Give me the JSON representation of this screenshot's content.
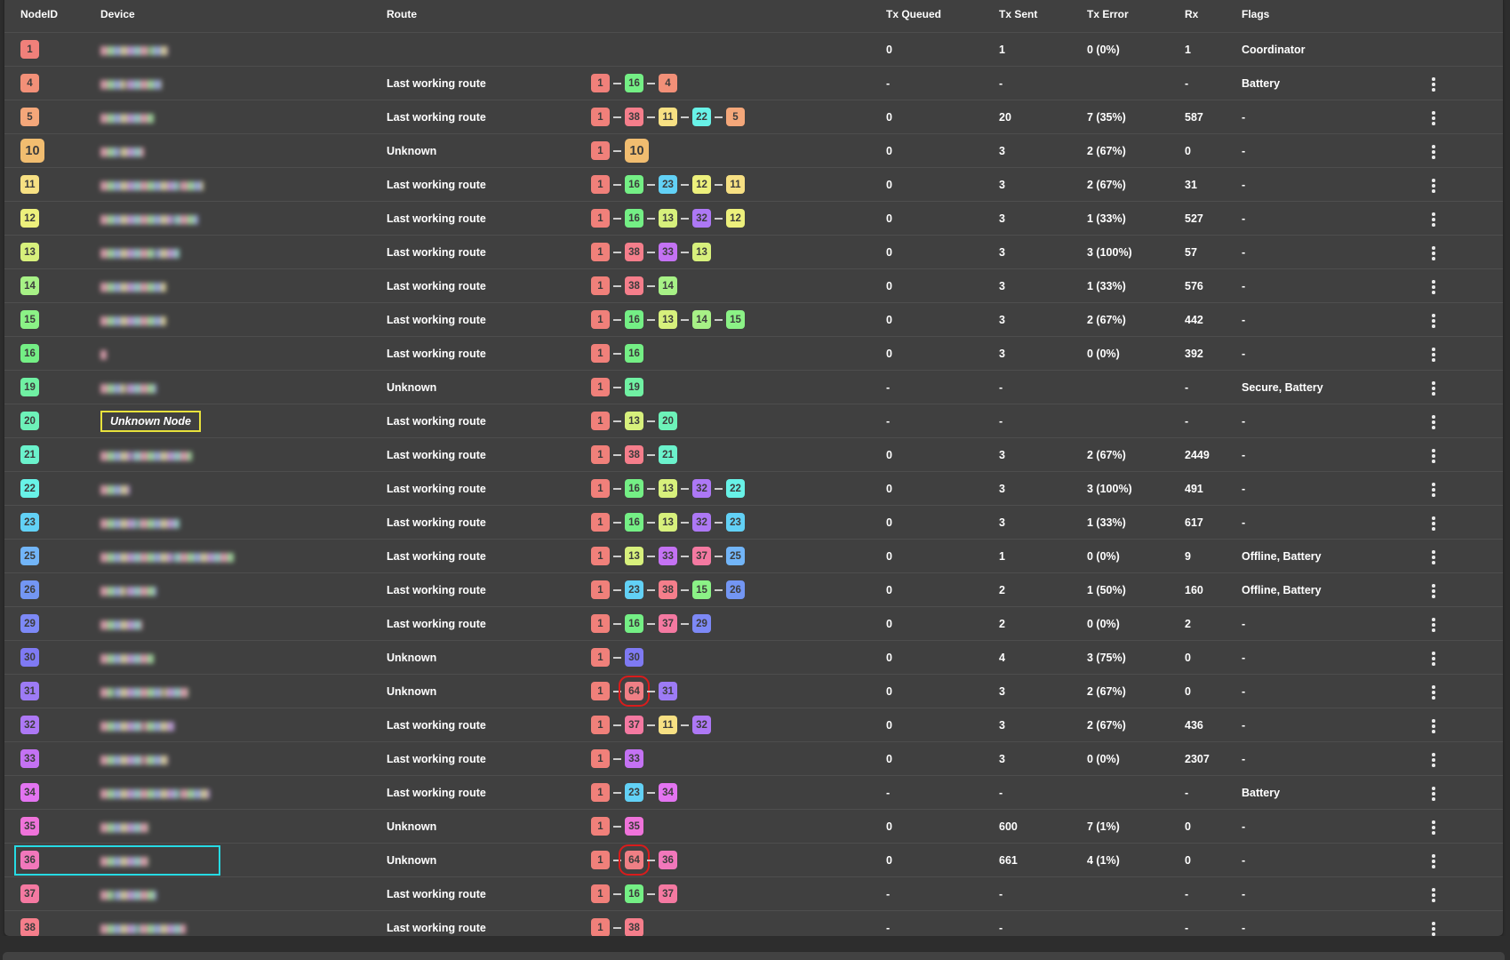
{
  "table": {
    "columns": {
      "node_id": "NodeID",
      "device": "Device",
      "route": "Route",
      "tx_queued": "Tx Queued",
      "tx_sent": "Tx Sent",
      "tx_error": "Tx Error",
      "rx": "Rx",
      "flags": "Flags"
    },
    "chip_colors": {
      "1": "#f0807a",
      "4": "#f29078",
      "5": "#f4a77a",
      "10": "#f1bd70",
      "11": "#f7e083",
      "12": "#edf07c",
      "13": "#d7f07c",
      "14": "#a7f186",
      "15": "#8bf286",
      "16": "#74ef85",
      "19": "#70f1a3",
      "20": "#6df2b9",
      "21": "#6bf2cc",
      "22": "#68f2e7",
      "23": "#62d1f6",
      "25": "#72b5f8",
      "26": "#7396f3",
      "29": "#7d89f6",
      "30": "#7f7af3",
      "31": "#9d7bf5",
      "32": "#ad78f5",
      "33": "#c472f3",
      "34": "#e374f1",
      "35": "#ef73da",
      "36": "#f177bb",
      "37": "#f479a1",
      "38": "#f57e8b",
      "64": "#ef7f85"
    },
    "annotation_colors": {
      "red_box": "#d91c1c",
      "yellow_box": "#e8e23c",
      "cyan_box": "#26dbe4"
    },
    "rows": [
      {
        "id": 1,
        "device": "████████ ███",
        "device_type": "redacted",
        "route_label": "",
        "route": [],
        "tx_queued": "0",
        "tx_sent": "1",
        "tx_error": "0 (0%)",
        "rx": "1",
        "flags": "Coordinator",
        "has_menu": false
      },
      {
        "id": 4,
        "device": "████ ██████",
        "device_type": "redacted",
        "route_label": "Last working route",
        "route": [
          1,
          16,
          4
        ],
        "tx_queued": "-",
        "tx_sent": "-",
        "tx_error": "",
        "rx": "-",
        "flags": "Battery",
        "has_menu": true
      },
      {
        "id": 5,
        "device": "█████████",
        "device_type": "redacted",
        "route_label": "Last working route",
        "route": [
          1,
          38,
          11,
          22,
          5
        ],
        "tx_queued": "0",
        "tx_sent": "20",
        "tx_error": "7 (35%)",
        "rx": "587",
        "flags": "-",
        "has_menu": true
      },
      {
        "id": 10,
        "device": "███ ████",
        "device_type": "redacted",
        "big": true,
        "route_label": "Unknown",
        "route": [
          1,
          10
        ],
        "tx_queued": "0",
        "tx_sent": "3",
        "tx_error": "2 (67%)",
        "rx": "0",
        "flags": "-",
        "has_menu": true
      },
      {
        "id": 11,
        "device": "█████████████ ████",
        "device_type": "redacted",
        "route_label": "Last working route",
        "route": [
          1,
          16,
          23,
          12,
          11
        ],
        "tx_queued": "0",
        "tx_sent": "3",
        "tx_error": "2 (67%)",
        "rx": "31",
        "flags": "-",
        "has_menu": true
      },
      {
        "id": 12,
        "device": "████████████ ████",
        "device_type": "redacted",
        "route_label": "Last working route",
        "route": [
          1,
          16,
          13,
          32,
          12
        ],
        "tx_queued": "0",
        "tx_sent": "3",
        "tx_error": "1 (33%)",
        "rx": "527",
        "flags": "-",
        "has_menu": true
      },
      {
        "id": 13,
        "device": "█████████ ████",
        "device_type": "redacted",
        "route_label": "Last working route",
        "route": [
          1,
          38,
          33,
          13
        ],
        "tx_queued": "0",
        "tx_sent": "3",
        "tx_error": "3 (100%)",
        "rx": "57",
        "flags": "-",
        "has_menu": true
      },
      {
        "id": 14,
        "device": "███████████",
        "device_type": "redacted",
        "route_label": "Last working route",
        "route": [
          1,
          38,
          14
        ],
        "tx_queued": "0",
        "tx_sent": "3",
        "tx_error": "1 (33%)",
        "rx": "576",
        "flags": "-",
        "has_menu": true
      },
      {
        "id": 15,
        "device": "███████████",
        "device_type": "redacted",
        "route_label": "Last working route",
        "route": [
          1,
          16,
          13,
          14,
          15
        ],
        "tx_queued": "0",
        "tx_sent": "3",
        "tx_error": "2 (67%)",
        "rx": "442",
        "flags": "-",
        "has_menu": true
      },
      {
        "id": 16,
        "device": "█",
        "device_type": "redacted",
        "route_label": "Last working route",
        "route": [
          1,
          16
        ],
        "tx_queued": "0",
        "tx_sent": "3",
        "tx_error": "0 (0%)",
        "rx": "392",
        "flags": "-",
        "has_menu": true
      },
      {
        "id": 19,
        "device": "████ █████",
        "device_type": "redacted",
        "route_label": "Unknown",
        "route": [
          1,
          19
        ],
        "tx_queued": "-",
        "tx_sent": "-",
        "tx_error": "",
        "rx": "-",
        "flags": "Secure, Battery",
        "has_menu": true
      },
      {
        "id": 20,
        "device": "Unknown Node",
        "device_type": "unknown-node",
        "route_label": "Last working route",
        "route": [
          1,
          13,
          20
        ],
        "tx_queued": "-",
        "tx_sent": "-",
        "tx_error": "",
        "rx": "-",
        "flags": "-",
        "has_menu": true
      },
      {
        "id": 21,
        "device": "█████ ██████████",
        "device_type": "redacted",
        "route_label": "Last working route",
        "route": [
          1,
          38,
          21
        ],
        "tx_queued": "0",
        "tx_sent": "3",
        "tx_error": "2 (67%)",
        "rx": "2449",
        "flags": "-",
        "has_menu": true
      },
      {
        "id": 22,
        "device": "█████",
        "device_type": "redacted",
        "route_label": "Last working route",
        "route": [
          1,
          16,
          13,
          32,
          22
        ],
        "tx_queued": "0",
        "tx_sent": "3",
        "tx_error": "3 (100%)",
        "rx": "491",
        "flags": "-",
        "has_menu": true
      },
      {
        "id": 23,
        "device": "██████ ███████",
        "device_type": "redacted",
        "route_label": "Last working route",
        "route": [
          1,
          16,
          13,
          32,
          23
        ],
        "tx_queued": "0",
        "tx_sent": "3",
        "tx_error": "1 (33%)",
        "rx": "617",
        "flags": "-",
        "has_menu": true
      },
      {
        "id": 25,
        "device": "████████████ ██████████",
        "device_type": "redacted",
        "route_label": "Last working route",
        "route": [
          1,
          13,
          33,
          37,
          25
        ],
        "tx_queued": "0",
        "tx_sent": "1",
        "tx_error": "0 (0%)",
        "rx": "9",
        "flags": "Offline, Battery",
        "has_menu": true
      },
      {
        "id": 26,
        "device": "████ █████",
        "device_type": "redacted",
        "route_label": "Last working route",
        "route": [
          1,
          23,
          38,
          15,
          26
        ],
        "tx_queued": "0",
        "tx_sent": "2",
        "tx_error": "1 (50%)",
        "rx": "160",
        "flags": "Offline, Battery",
        "has_menu": true
      },
      {
        "id": 29,
        "device": "███████",
        "device_type": "redacted",
        "route_label": "Last working route",
        "route": [
          1,
          16,
          37,
          29
        ],
        "tx_queued": "0",
        "tx_sent": "2",
        "tx_error": "0 (0%)",
        "rx": "2",
        "flags": "-",
        "has_menu": true
      },
      {
        "id": 30,
        "device": "█████████",
        "device_type": "redacted",
        "route_label": "Unknown",
        "route": [
          1,
          30
        ],
        "tx_queued": "0",
        "tx_sent": "4",
        "tx_error": "3 (75%)",
        "rx": "0",
        "flags": "-",
        "has_menu": true
      },
      {
        "id": 31,
        "device": "██ ████████ ████",
        "device_type": "redacted",
        "route_label": "Unknown",
        "route": [
          1,
          64,
          31
        ],
        "red_box_index": 1,
        "tx_queued": "0",
        "tx_sent": "3",
        "tx_error": "2 (67%)",
        "rx": "0",
        "flags": "-",
        "has_menu": true
      },
      {
        "id": 32,
        "device": "███████ █████",
        "device_type": "redacted",
        "route_label": "Last working route",
        "route": [
          1,
          37,
          11,
          32
        ],
        "tx_queued": "0",
        "tx_sent": "3",
        "tx_error": "2 (67%)",
        "rx": "436",
        "flags": "-",
        "has_menu": true
      },
      {
        "id": 33,
        "device": "███████ ████",
        "device_type": "redacted",
        "route_label": "Last working route",
        "route": [
          1,
          33
        ],
        "tx_queued": "0",
        "tx_sent": "3",
        "tx_error": "0 (0%)",
        "rx": "2307",
        "flags": "-",
        "has_menu": true
      },
      {
        "id": 34,
        "device": "█████████████ █████",
        "device_type": "redacted",
        "route_label": "Last working route",
        "route": [
          1,
          23,
          34
        ],
        "tx_queued": "-",
        "tx_sent": "-",
        "tx_error": "",
        "rx": "-",
        "flags": "Battery",
        "has_menu": true
      },
      {
        "id": 35,
        "device": "████████",
        "device_type": "redacted",
        "route_label": "Unknown",
        "route": [
          1,
          35
        ],
        "tx_queued": "0",
        "tx_sent": "600",
        "tx_error": "7 (1%)",
        "rx": "0",
        "flags": "-",
        "has_menu": true
      },
      {
        "id": 36,
        "device": "████████",
        "device_type": "redacted",
        "highlighted": true,
        "route_label": "Unknown",
        "route": [
          1,
          64,
          36
        ],
        "red_box_index": 1,
        "tx_queued": "0",
        "tx_sent": "661",
        "tx_error": "4 (1%)",
        "rx": "0",
        "flags": "-",
        "has_menu": true
      },
      {
        "id": 37,
        "device": "██ ███████",
        "device_type": "redacted",
        "route_label": "Last working route",
        "route": [
          1,
          16,
          37
        ],
        "tx_queued": "-",
        "tx_sent": "-",
        "tx_error": "",
        "rx": "-",
        "flags": "-",
        "has_menu": true
      },
      {
        "id": 38,
        "device": "██████ ████████",
        "device_type": "redacted",
        "route_label": "Last working route",
        "route": [
          1,
          38
        ],
        "tx_queued": "-",
        "tx_sent": "-",
        "tx_error": "",
        "rx": "-",
        "flags": "-",
        "has_menu": true
      }
    ]
  }
}
